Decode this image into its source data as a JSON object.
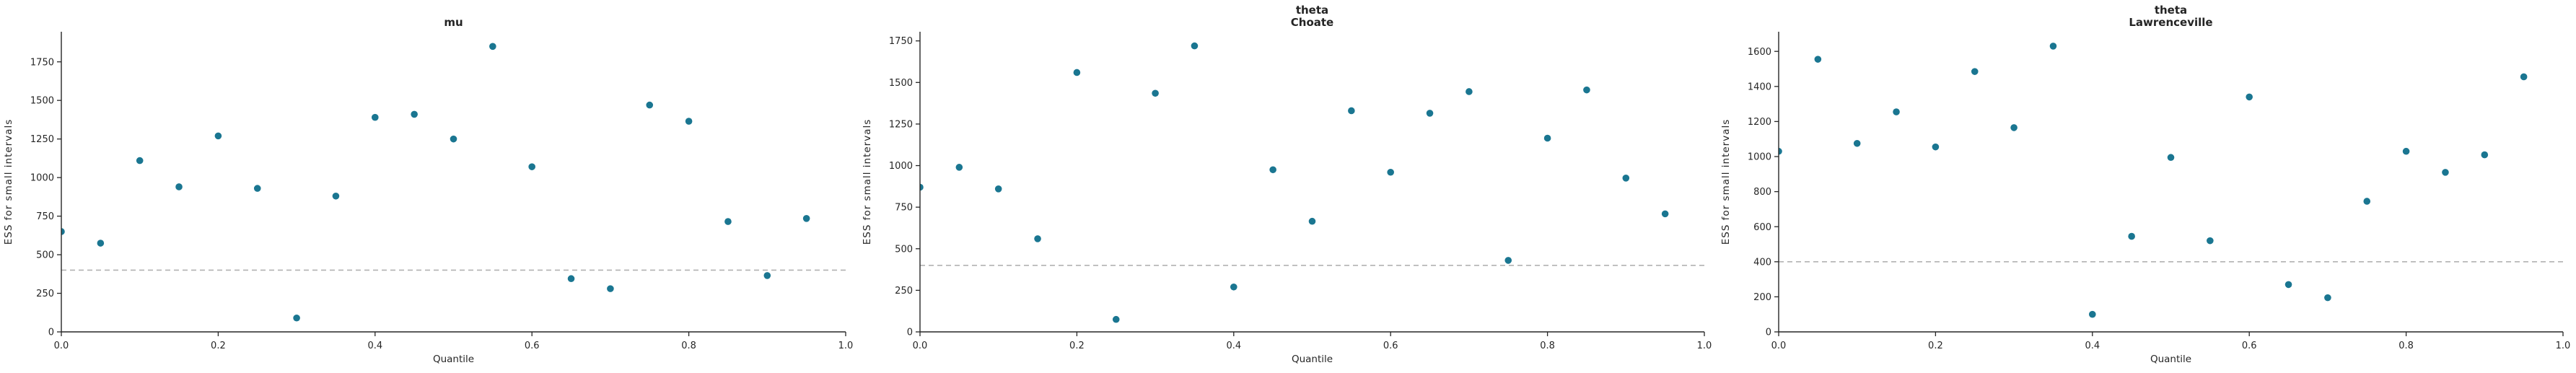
{
  "figure": {
    "background": "#ffffff",
    "description": "Three scatter panels of ESS for small intervals versus Quantile"
  },
  "style": {
    "marker_color": "#1a7691",
    "axis_color": "#262626",
    "text_color": "#262626",
    "title_color": "#242424",
    "dashed_line_color": "#b2b2b2"
  },
  "chart_data": [
    {
      "type": "scatter",
      "title": "mu",
      "title_lines": [
        "mu"
      ],
      "xlabel": "Quantile",
      "ylabel": "ESS for small intervals",
      "legend": false,
      "grid": false,
      "xlim": [
        0,
        1
      ],
      "ylim": [
        0,
        1945
      ],
      "xticks": [
        0.0,
        0.2,
        0.4,
        0.6,
        0.8,
        1.0
      ],
      "yticks": [
        0,
        250,
        500,
        750,
        1000,
        1250,
        1500,
        1750
      ],
      "min_ess_line": 400,
      "x": [
        0.0,
        0.05,
        0.1,
        0.15,
        0.2,
        0.25,
        0.3,
        0.35,
        0.4,
        0.45,
        0.5,
        0.55,
        0.6,
        0.65,
        0.7,
        0.75,
        0.8,
        0.85,
        0.9,
        0.95
      ],
      "y": [
        650,
        575,
        1110,
        940,
        1270,
        930,
        90,
        880,
        1390,
        1410,
        1250,
        1850,
        1070,
        345,
        280,
        1470,
        1365,
        715,
        365,
        735
      ]
    },
    {
      "type": "scatter",
      "title": "theta Choate",
      "title_lines": [
        "theta",
        "Choate"
      ],
      "xlabel": "Quantile",
      "ylabel": "ESS for small intervals",
      "legend": false,
      "grid": false,
      "xlim": [
        0,
        1
      ],
      "ylim": [
        0,
        1805
      ],
      "xticks": [
        0.0,
        0.2,
        0.4,
        0.6,
        0.8,
        1.0
      ],
      "yticks": [
        0,
        250,
        500,
        750,
        1000,
        1250,
        1500,
        1750
      ],
      "min_ess_line": 400,
      "x": [
        0.0,
        0.05,
        0.1,
        0.15,
        0.2,
        0.25,
        0.3,
        0.35,
        0.4,
        0.45,
        0.5,
        0.55,
        0.6,
        0.65,
        0.7,
        0.75,
        0.8,
        0.85,
        0.9,
        0.95
      ],
      "y": [
        870,
        990,
        860,
        560,
        1560,
        75,
        1435,
        1720,
        270,
        975,
        665,
        1330,
        960,
        1315,
        1445,
        430,
        1165,
        1455,
        925,
        710
      ]
    },
    {
      "type": "scatter",
      "title": "theta Lawrenceville",
      "title_lines": [
        "theta",
        "Lawrenceville"
      ],
      "xlabel": "Quantile",
      "ylabel": "ESS for small intervals",
      "legend": false,
      "grid": false,
      "xlim": [
        0,
        1
      ],
      "ylim": [
        0,
        1712
      ],
      "xticks": [
        0.0,
        0.2,
        0.4,
        0.6,
        0.8,
        1.0
      ],
      "yticks": [
        0,
        200,
        400,
        600,
        800,
        1000,
        1200,
        1400,
        1600
      ],
      "min_ess_line": 400,
      "x": [
        0.0,
        0.05,
        0.1,
        0.15,
        0.2,
        0.25,
        0.3,
        0.35,
        0.4,
        0.45,
        0.5,
        0.55,
        0.6,
        0.65,
        0.7,
        0.75,
        0.8,
        0.85,
        0.9,
        0.95
      ],
      "y": [
        1030,
        1555,
        1075,
        1255,
        1055,
        1485,
        1165,
        1630,
        100,
        545,
        995,
        520,
        1340,
        270,
        195,
        745,
        1030,
        910,
        1010,
        1455
      ]
    }
  ]
}
